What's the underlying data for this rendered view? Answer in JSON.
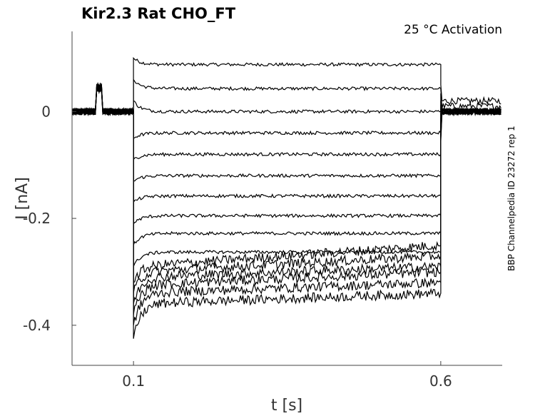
{
  "chart_data": {
    "type": "line",
    "title": "Kir2.3  Rat  CHO_FT",
    "annotation": "25 °C  Activation",
    "side_label": "BBP Channelpedia ID 23272 rep 1",
    "xlabel": "t [s]",
    "ylabel": "I [nA]",
    "xlim": [
      0.0,
      0.7
    ],
    "ylim": [
      -0.475,
      0.15
    ],
    "xticks": [
      {
        "value": 0.1,
        "label": "0.1"
      },
      {
        "value": 0.6,
        "label": "0.6"
      }
    ],
    "yticks": [
      {
        "value": 0,
        "label": "0"
      },
      {
        "value": -0.2,
        "label": "-0.2"
      },
      {
        "value": -0.4,
        "label": "-0.4"
      }
    ],
    "grid": false,
    "line_color": "#000000",
    "step_window": [
      0.1,
      0.6
    ],
    "prepulse_artifact": [
      0.04,
      0.05
    ],
    "series": [
      {
        "pre": 0.0,
        "step": 0.088,
        "peak": 0.1,
        "post": 0.02
      },
      {
        "pre": 0.0,
        "step": 0.043,
        "peak": 0.06,
        "post": 0.01
      },
      {
        "pre": 0.0,
        "step": 0.0,
        "peak": 0.02,
        "post": 0.0
      },
      {
        "pre": 0.0,
        "step": -0.04,
        "peak": -0.05,
        "post": 0.0
      },
      {
        "pre": 0.0,
        "step": -0.08,
        "peak": -0.09,
        "post": 0.0
      },
      {
        "pre": 0.0,
        "step": -0.12,
        "peak": -0.13,
        "post": 0.0
      },
      {
        "pre": 0.0,
        "step": -0.158,
        "peak": -0.17,
        "post": 0.0
      },
      {
        "pre": 0.0,
        "step": -0.195,
        "peak": -0.21,
        "post": 0.0
      },
      {
        "pre": 0.0,
        "step": -0.228,
        "peak": -0.25,
        "post": 0.0
      },
      {
        "pre": 0.0,
        "step": -0.263,
        "peak": -0.29,
        "post": 0.0
      },
      {
        "pre": 0.0,
        "step": -0.29,
        "end": -0.25,
        "peak": -0.32,
        "post": 0.0
      },
      {
        "pre": 0.0,
        "step": -0.3,
        "end": -0.27,
        "peak": -0.34,
        "post": 0.0
      },
      {
        "pre": 0.0,
        "step": -0.31,
        "end": -0.29,
        "peak": -0.36,
        "post": 0.0
      },
      {
        "pre": 0.0,
        "step": -0.325,
        "end": -0.3,
        "peak": -0.38,
        "post": 0.0
      },
      {
        "pre": 0.0,
        "step": -0.34,
        "end": -0.32,
        "peak": -0.4,
        "post": 0.0
      },
      {
        "pre": 0.0,
        "step": -0.36,
        "end": -0.34,
        "peak": -0.425,
        "post": 0.0
      }
    ]
  }
}
